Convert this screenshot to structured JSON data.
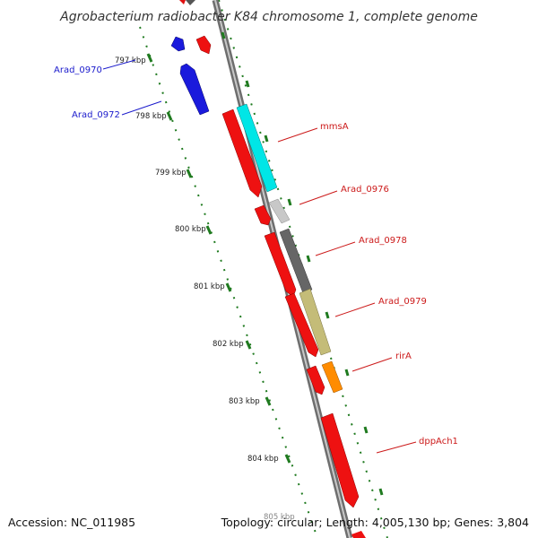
{
  "title": "Agrobacterium radiobacter K84 chromosome 1, complete genome",
  "accession": "Accession: NC_011985",
  "summary": "Topology: circular; Length: 4,005,130 bp; Genes: 3,804",
  "colors": {
    "backbone": "#8c8c8c",
    "tick": "#1f7a1f",
    "blue_label": "#1a1acc",
    "red_label": "#cc1a1a"
  },
  "ticks": [
    {
      "label": "797 kbp"
    },
    {
      "label": "798 kbp"
    },
    {
      "label": "799 kbp"
    },
    {
      "label": "800 kbp"
    },
    {
      "label": "801 kbp"
    },
    {
      "label": "802 kbp"
    },
    {
      "label": "803 kbp"
    },
    {
      "label": "804 kbp"
    },
    {
      "label": "805 kbp"
    }
  ],
  "labels": [
    {
      "text": "Arad_0970",
      "color": "#1a1acc"
    },
    {
      "text": "Arad_0972",
      "color": "#1a1acc"
    },
    {
      "text": "mmsA",
      "color": "#cc1a1a"
    },
    {
      "text": "Arad_0976",
      "color": "#cc1a1a"
    },
    {
      "text": "Arad_0978",
      "color": "#cc1a1a"
    },
    {
      "text": "Arad_0979",
      "color": "#cc1a1a"
    },
    {
      "text": "rirA",
      "color": "#cc1a1a"
    },
    {
      "text": "dppAch1",
      "color": "#cc1a1a"
    }
  ]
}
